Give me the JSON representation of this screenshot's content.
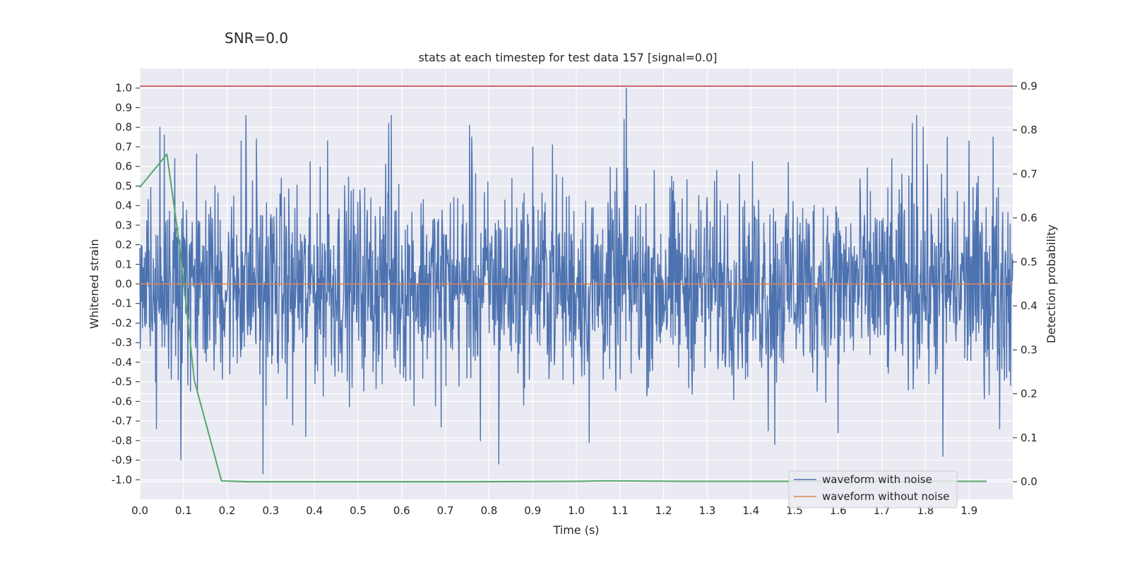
{
  "chart_data": {
    "type": "line",
    "suptitle": "SNR=0.0",
    "title": "stats at each timestep for test data 157 [signal=0.0]",
    "xlabel": "Time (s)",
    "ylabel": "Whitened strain",
    "ylabel_right": "Detection probability",
    "xlim": [
      0.0,
      2.0
    ],
    "ylim": [
      -1.1,
      1.1
    ],
    "ylim_right": [
      -0.04,
      0.94
    ],
    "xticks": [
      "0.0",
      "0.1",
      "0.2",
      "0.3",
      "0.4",
      "0.5",
      "0.6",
      "0.7",
      "0.8",
      "0.9",
      "1.0",
      "1.1",
      "1.2",
      "1.3",
      "1.4",
      "1.5",
      "1.6",
      "1.7",
      "1.8",
      "1.9"
    ],
    "yticks": [
      "1.0",
      "0.9",
      "0.8",
      "0.7",
      "0.6",
      "0.5",
      "0.4",
      "0.3",
      "0.2",
      "0.1",
      "0.0",
      "-0.1",
      "-0.2",
      "-0.3",
      "-0.4",
      "-0.5",
      "-0.6",
      "-0.7",
      "-0.8",
      "-0.9",
      "-1.0"
    ],
    "yticks_right": [
      "0.9",
      "0.8",
      "0.7",
      "0.6",
      "0.5",
      "0.4",
      "0.3",
      "0.2",
      "0.1",
      "0.0"
    ],
    "grid": true,
    "legend_position": "lower-right",
    "colors": {
      "noise": "#4c72b0",
      "clean": "#dd8452",
      "detection": "#55a868",
      "threshold": "#c44e52",
      "background": "#eaeaf2",
      "grid": "#ffffff"
    },
    "series": [
      {
        "name": "waveform with noise",
        "axis": "left",
        "description": "whitened noisy strain sampled densely over 0-2 s, roughly uniform noise in [-0.6, 0.6] with spikes",
        "samples": 2000,
        "amplitude": 0.3,
        "spikes": [
          {
            "x": 0.046,
            "y": 0.8
          },
          {
            "x": 0.056,
            "y": 0.76
          },
          {
            "x": 0.08,
            "y": 0.64
          },
          {
            "x": 0.094,
            "y": -0.9
          },
          {
            "x": 0.038,
            "y": -0.74
          },
          {
            "x": 0.243,
            "y": 0.86
          },
          {
            "x": 0.232,
            "y": 0.73
          },
          {
            "x": 0.267,
            "y": 0.74
          },
          {
            "x": 0.282,
            "y": -0.97
          },
          {
            "x": 0.35,
            "y": -0.72
          },
          {
            "x": 0.38,
            "y": -0.78
          },
          {
            "x": 0.43,
            "y": 0.73
          },
          {
            "x": 0.576,
            "y": 0.86
          },
          {
            "x": 0.57,
            "y": 0.82
          },
          {
            "x": 0.69,
            "y": -0.73
          },
          {
            "x": 0.755,
            "y": 0.81
          },
          {
            "x": 0.76,
            "y": 0.75
          },
          {
            "x": 0.822,
            "y": -0.92
          },
          {
            "x": 0.78,
            "y": -0.8
          },
          {
            "x": 0.9,
            "y": 0.7
          },
          {
            "x": 0.945,
            "y": 0.71
          },
          {
            "x": 1.03,
            "y": -0.81
          },
          {
            "x": 1.115,
            "y": 1.0
          },
          {
            "x": 1.11,
            "y": 0.84
          },
          {
            "x": 1.455,
            "y": -0.82
          },
          {
            "x": 1.44,
            "y": -0.75
          },
          {
            "x": 1.6,
            "y": -0.76
          },
          {
            "x": 1.77,
            "y": 0.82
          },
          {
            "x": 1.78,
            "y": 0.86
          },
          {
            "x": 1.84,
            "y": -0.88
          },
          {
            "x": 1.9,
            "y": 0.73
          },
          {
            "x": 1.955,
            "y": 0.75
          },
          {
            "x": 1.97,
            "y": -0.74
          },
          {
            "x": 1.85,
            "y": 0.75
          },
          {
            "x": 1.795,
            "y": 0.8
          }
        ]
      },
      {
        "name": "waveform without noise",
        "axis": "left",
        "x": [
          0.0,
          2.0
        ],
        "y": [
          0.0,
          0.0
        ]
      },
      {
        "name": "detection probability",
        "axis": "right",
        "x": [
          0.0,
          0.062,
          0.092,
          0.125,
          0.187,
          0.25,
          0.5,
          0.75,
          1.0,
          1.06,
          1.25,
          1.5,
          1.75,
          1.94
        ],
        "y": [
          0.67,
          0.745,
          0.53,
          0.23,
          0.002,
          0.0,
          0.0,
          0.0,
          0.001,
          0.002,
          0.001,
          0.001,
          0.001,
          0.001
        ]
      }
    ],
    "threshold": {
      "axis": "right",
      "value": 0.9
    },
    "legend": [
      "waveform with noise",
      "waveform without noise"
    ]
  }
}
